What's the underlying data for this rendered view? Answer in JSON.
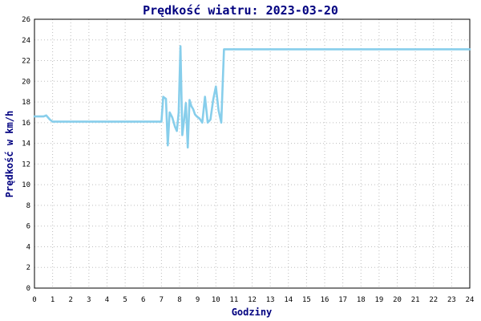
{
  "chart_data": {
    "type": "line",
    "title": "Prędkość wiatru: 2023-03-20",
    "xlabel": "Godziny",
    "ylabel": "Prędkość w km/h",
    "xlim": [
      0,
      24
    ],
    "ylim": [
      0,
      26
    ],
    "xticks": [
      0,
      1,
      2,
      3,
      4,
      5,
      6,
      7,
      8,
      9,
      10,
      11,
      12,
      13,
      14,
      15,
      16,
      17,
      18,
      19,
      20,
      21,
      22,
      23,
      24
    ],
    "yticks": [
      0,
      2,
      4,
      6,
      8,
      10,
      12,
      14,
      16,
      18,
      20,
      22,
      24,
      26
    ],
    "grid": true,
    "line_color": "#87ceeb",
    "series": [
      {
        "x": [
          0,
          0.5,
          0.65,
          0.85,
          1,
          2,
          3,
          4,
          5,
          6,
          6.8,
          7.0,
          7.1,
          7.25,
          7.35,
          7.45,
          7.6,
          7.75,
          7.85,
          7.95,
          8.05,
          8.15,
          8.25,
          8.35,
          8.45,
          8.55,
          8.65,
          8.75,
          8.85,
          8.95,
          9.1,
          9.25,
          9.4,
          9.55,
          9.7,
          9.85,
          10.0,
          10.15,
          10.3,
          10.45,
          10.6,
          10.75,
          10.9,
          11.0,
          11.05,
          12,
          16,
          20,
          24
        ],
        "y": [
          16.6,
          16.6,
          16.7,
          16.3,
          16.1,
          16.1,
          16.1,
          16.1,
          16.1,
          16.1,
          16.1,
          16.1,
          18.5,
          18.3,
          13.8,
          17.0,
          16.5,
          15.6,
          15.2,
          17.0,
          23.4,
          14.8,
          16.3,
          17.9,
          13.6,
          18.2,
          17.6,
          17.3,
          16.8,
          16.6,
          16.4,
          16.0,
          18.5,
          16.0,
          16.3,
          18.2,
          19.5,
          17.2,
          16.0,
          23.1,
          23.1,
          23.1,
          23.1,
          23.1,
          23.1,
          23.1,
          23.1,
          23.1,
          23.1
        ]
      }
    ]
  }
}
